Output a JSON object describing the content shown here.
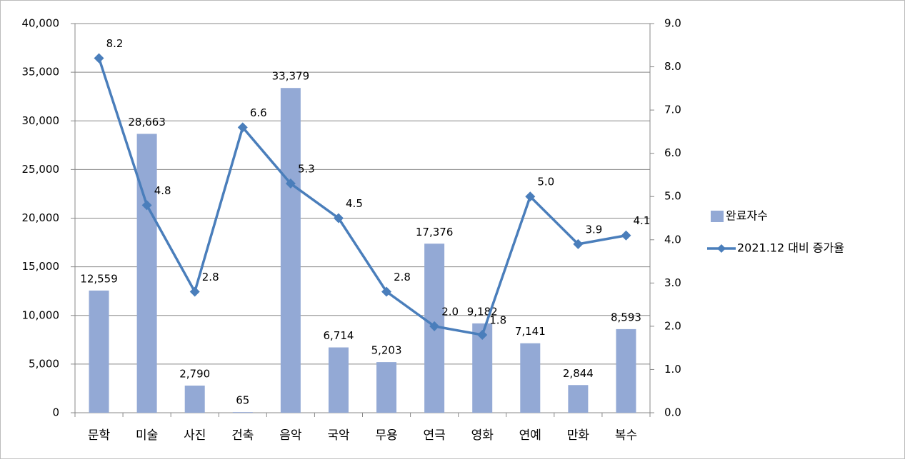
{
  "chart_data": {
    "type": "combo",
    "categories": [
      "문학",
      "미술",
      "사진",
      "건축",
      "음악",
      "국악",
      "무용",
      "연극",
      "영화",
      "연예",
      "만화",
      "복수"
    ],
    "series": [
      {
        "name": "완료자수",
        "type": "bar",
        "color": "#93a9d5",
        "values": [
          12559,
          28663,
          2790,
          65,
          33379,
          6714,
          5203,
          17376,
          9182,
          7141,
          2844,
          8593
        ],
        "value_labels": [
          "12,559",
          "28,663",
          "2,790",
          "65",
          "33,379",
          "6,714",
          "5,203",
          "17,376",
          "9,182",
          "7,141",
          "2,844",
          "8,593"
        ]
      },
      {
        "name": "2021.12 대비 증가율",
        "type": "line",
        "axis": "y2",
        "color": "#4a7ebb",
        "values": [
          8.2,
          4.8,
          2.8,
          6.6,
          5.3,
          4.5,
          2.8,
          2.0,
          1.8,
          5.0,
          3.9,
          4.1
        ],
        "value_labels": [
          "8.2",
          "4.8",
          "2.8",
          "6.6",
          "5.3",
          "4.5",
          "2.8",
          "2.0",
          "1.8",
          "5.0",
          "3.9",
          "4.1"
        ]
      }
    ],
    "ylim": [
      0,
      40000
    ],
    "yticks": [
      0,
      {
        "value": 5000,
        "label": "5,000"
      },
      {
        "value": 10000,
        "label": "10,000"
      },
      {
        "value": 15000,
        "label": "15,000"
      },
      {
        "value": 20000,
        "label": "20,000"
      },
      {
        "value": 25000,
        "label": "25,000"
      },
      {
        "value": 30000,
        "label": "30,000"
      },
      {
        "value": 35000,
        "label": "35,000"
      },
      {
        "value": 40000,
        "label": "40,000"
      }
    ],
    "y2lim": [
      0,
      9
    ],
    "y2ticks": [
      {
        "value": 0,
        "label": "0.0"
      },
      {
        "value": 1,
        "label": "1.0"
      },
      {
        "value": 2,
        "label": "2.0"
      },
      {
        "value": 3,
        "label": "3.0"
      },
      {
        "value": 4,
        "label": "4.0"
      },
      {
        "value": 5,
        "label": "5.0"
      },
      {
        "value": 6,
        "label": "6.0"
      },
      {
        "value": 7,
        "label": "7.0"
      },
      {
        "value": 8,
        "label": "8.0"
      },
      {
        "value": 9,
        "label": "9.0"
      }
    ],
    "grid": true,
    "legend": "right"
  }
}
